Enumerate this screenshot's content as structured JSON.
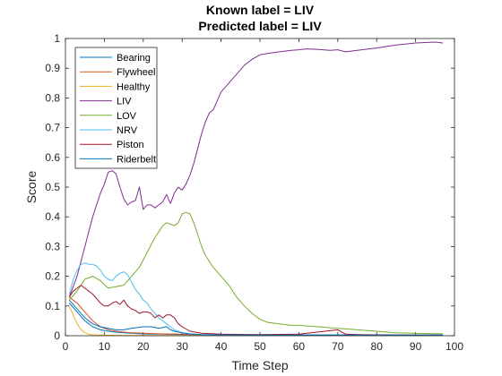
{
  "chart_data": {
    "type": "line",
    "title": "Known label = LIV",
    "subtitle": "Predicted label = LIV",
    "xlabel": "Time Step",
    "ylabel": "Score",
    "xlim": [
      0,
      100
    ],
    "ylim": [
      0,
      1
    ],
    "xticks": [
      0,
      10,
      20,
      30,
      40,
      50,
      60,
      70,
      80,
      90,
      100
    ],
    "yticks": [
      0,
      0.1,
      0.2,
      0.3,
      0.4,
      0.5,
      0.6,
      0.7,
      0.8,
      0.9,
      1
    ],
    "grid": false,
    "legend_position": "top-left",
    "series": [
      {
        "name": "Bearing",
        "color": "#0072BD",
        "x": [
          1,
          3,
          5,
          7,
          9,
          11,
          13,
          15,
          17,
          20,
          25,
          30,
          35,
          40,
          50,
          60,
          70,
          80,
          90,
          97
        ],
        "y": [
          0.11,
          0.08,
          0.05,
          0.03,
          0.02,
          0.015,
          0.012,
          0.01,
          0.008,
          0.006,
          0.005,
          0.004,
          0.003,
          0.002,
          0.002,
          0.002,
          0.002,
          0.002,
          0.002,
          0.002
        ]
      },
      {
        "name": "Flywheel",
        "color": "#D95319",
        "x": [
          1,
          3,
          5,
          7,
          9,
          11,
          13,
          15,
          17,
          20,
          25,
          30,
          35,
          40,
          50,
          60,
          70,
          80,
          90,
          97
        ],
        "y": [
          0.13,
          0.11,
          0.08,
          0.05,
          0.03,
          0.02,
          0.015,
          0.012,
          0.01,
          0.008,
          0.006,
          0.005,
          0.003,
          0.002,
          0.002,
          0.002,
          0.002,
          0.002,
          0.002,
          0.002
        ]
      },
      {
        "name": "Healthy",
        "color": "#EDB120",
        "x": [
          1,
          2,
          3,
          4,
          5,
          6,
          7,
          8,
          10,
          15,
          20,
          30,
          40,
          50,
          60,
          70,
          80,
          90,
          97
        ],
        "y": [
          0.1,
          0.07,
          0.04,
          0.02,
          0.01,
          0.005,
          0.003,
          0.002,
          0.002,
          0.001,
          0.001,
          0.001,
          0.001,
          0.001,
          0.001,
          0.001,
          0.001,
          0.001,
          0.001
        ]
      },
      {
        "name": "LIV",
        "color": "#7E2F8E",
        "x": [
          1,
          3,
          5,
          7,
          9,
          10,
          11,
          12,
          13,
          14,
          15,
          16,
          17,
          18,
          19,
          20,
          21,
          22,
          23,
          24,
          25,
          26,
          27,
          28,
          29,
          30,
          31,
          32,
          33,
          34,
          35,
          36,
          37,
          38,
          40,
          42,
          44,
          46,
          48,
          50,
          52,
          55,
          58,
          60,
          62,
          65,
          68,
          70,
          72,
          75,
          78,
          80,
          82,
          85,
          88,
          90,
          92,
          95,
          97
        ],
        "y": [
          0.13,
          0.2,
          0.3,
          0.4,
          0.48,
          0.51,
          0.55,
          0.555,
          0.545,
          0.5,
          0.46,
          0.44,
          0.45,
          0.455,
          0.5,
          0.425,
          0.44,
          0.44,
          0.43,
          0.44,
          0.45,
          0.475,
          0.445,
          0.48,
          0.5,
          0.49,
          0.51,
          0.54,
          0.58,
          0.63,
          0.68,
          0.72,
          0.75,
          0.76,
          0.82,
          0.85,
          0.88,
          0.91,
          0.93,
          0.945,
          0.95,
          0.955,
          0.96,
          0.962,
          0.965,
          0.963,
          0.96,
          0.962,
          0.955,
          0.96,
          0.965,
          0.968,
          0.972,
          0.978,
          0.982,
          0.985,
          0.986,
          0.988,
          0.985
        ]
      },
      {
        "name": "LOV",
        "color": "#77AC30",
        "x": [
          1,
          3,
          5,
          7,
          9,
          11,
          13,
          15,
          17,
          19,
          21,
          23,
          24,
          25,
          26,
          27,
          28,
          29,
          30,
          31,
          32,
          33,
          34,
          35,
          36,
          38,
          40,
          42,
          44,
          46,
          48,
          50,
          52,
          55,
          58,
          60,
          65,
          70,
          75,
          80,
          85,
          90,
          95,
          97
        ],
        "y": [
          0.12,
          0.15,
          0.19,
          0.2,
          0.185,
          0.16,
          0.165,
          0.17,
          0.2,
          0.23,
          0.28,
          0.33,
          0.35,
          0.37,
          0.38,
          0.375,
          0.37,
          0.38,
          0.41,
          0.415,
          0.41,
          0.38,
          0.34,
          0.3,
          0.27,
          0.23,
          0.2,
          0.17,
          0.13,
          0.1,
          0.075,
          0.055,
          0.045,
          0.04,
          0.035,
          0.035,
          0.03,
          0.025,
          0.02,
          0.015,
          0.01,
          0.008,
          0.007,
          0.007
        ]
      },
      {
        "name": "NRV",
        "color": "#4DBEEE",
        "x": [
          1,
          2,
          3,
          4,
          5,
          6,
          7,
          8,
          9,
          10,
          11,
          12,
          13,
          14,
          15,
          16,
          17,
          18,
          19,
          20,
          21,
          22,
          23,
          24,
          25,
          26,
          27,
          28,
          30,
          32,
          35,
          40,
          50,
          60,
          70,
          80,
          90,
          97
        ],
        "y": [
          0.14,
          0.19,
          0.22,
          0.24,
          0.245,
          0.24,
          0.24,
          0.235,
          0.22,
          0.2,
          0.19,
          0.185,
          0.2,
          0.21,
          0.215,
          0.205,
          0.18,
          0.155,
          0.14,
          0.12,
          0.11,
          0.09,
          0.075,
          0.06,
          0.05,
          0.04,
          0.03,
          0.02,
          0.01,
          0.006,
          0.004,
          0.003,
          0.002,
          0.002,
          0.002,
          0.002,
          0.002,
          0.002
        ]
      },
      {
        "name": "Piston",
        "color": "#A2142F",
        "x": [
          1,
          2,
          3,
          4,
          5,
          6,
          7,
          8,
          9,
          10,
          11,
          12,
          13,
          14,
          15,
          16,
          17,
          18,
          19,
          20,
          21,
          22,
          23,
          24,
          25,
          26,
          27,
          28,
          29,
          30,
          32,
          35,
          40,
          50,
          60,
          70,
          72,
          75,
          80,
          90,
          97
        ],
        "y": [
          0.13,
          0.15,
          0.16,
          0.17,
          0.16,
          0.15,
          0.14,
          0.125,
          0.11,
          0.1,
          0.1,
          0.11,
          0.115,
          0.105,
          0.12,
          0.1,
          0.09,
          0.085,
          0.075,
          0.08,
          0.08,
          0.075,
          0.06,
          0.07,
          0.06,
          0.07,
          0.07,
          0.06,
          0.04,
          0.03,
          0.015,
          0.008,
          0.005,
          0.004,
          0.005,
          0.02,
          0.005,
          0.004,
          0.003,
          0.002,
          0.002
        ]
      },
      {
        "name": "Riderbelt",
        "color": "#0072BD",
        "x": [
          1,
          3,
          5,
          7,
          9,
          11,
          13,
          15,
          17,
          20,
          22,
          24,
          26,
          27,
          28,
          30,
          32,
          35,
          40,
          50,
          60,
          70,
          80,
          90,
          97
        ],
        "y": [
          0.12,
          0.09,
          0.06,
          0.04,
          0.03,
          0.025,
          0.02,
          0.02,
          0.025,
          0.03,
          0.03,
          0.025,
          0.03,
          0.02,
          0.015,
          0.01,
          0.006,
          0.004,
          0.003,
          0.002,
          0.002,
          0.002,
          0.002,
          0.002,
          0.002
        ]
      }
    ]
  }
}
